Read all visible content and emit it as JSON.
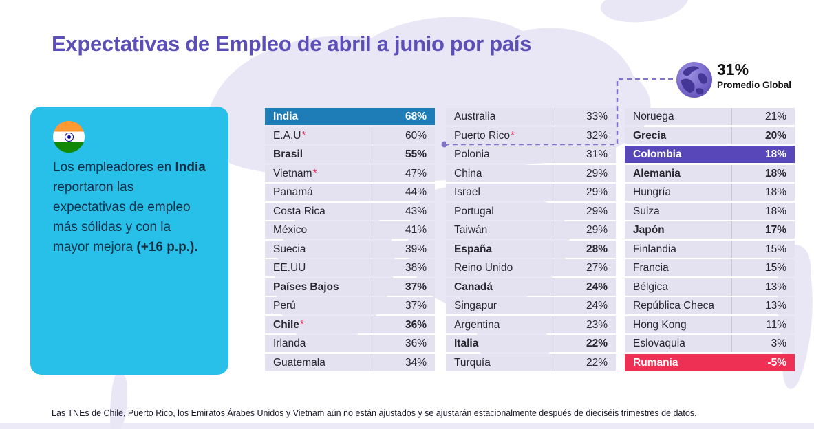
{
  "title": "Expectativas de Empleo de abril a junio por país",
  "global_average": {
    "display": "31%",
    "value": 31,
    "label": "Promedio Global"
  },
  "callout": {
    "text_1": "Los empleadores en ",
    "bold_1": "India",
    "text_2": " reportaron las expectativas de empleo más sólidas y con la mayor mejora ",
    "bold_2": "(+16 p.p.)."
  },
  "footnote": "Las TNEs de Chile, Puerto Rico, los Emiratos Árabes Unidos y Vietnam aún no están ajustados y se ajustarán estacionalmente después de dieciséis trimestres de datos.",
  "icons": {
    "globe": "globe-icon",
    "india_flag": "india-flag-icon"
  },
  "colors": {
    "title_text": "#5B4EB6",
    "row_bg": "#E4E1F1",
    "row_divider": "#C9C3DF",
    "row_text": "#26262E",
    "india_row": "#1E7DB7",
    "colombia_row": "#5847B8",
    "rumania_row": "#ED3054",
    "asterisk": "#E8325A",
    "callout_bg": "#28BFE8",
    "callout_text": "#0D2F45",
    "connector": "#8172CE",
    "watermark": "#E9E6F5"
  },
  "chart_data": {
    "type": "table",
    "title": "Expectativas de Empleo de abril a junio por país",
    "unit": "%",
    "asterisk_symbol": "*",
    "global_average": 31,
    "columns": [
      {
        "rows": [
          {
            "country": "India",
            "value": 68,
            "display": "68%",
            "highlight": "india"
          },
          {
            "country": "E.A.U",
            "value": 60,
            "display": "60%",
            "asterisk": true
          },
          {
            "country": "Brasil",
            "value": 55,
            "display": "55%",
            "bold": true
          },
          {
            "country": "Vietnam",
            "value": 47,
            "display": "47%",
            "asterisk": true
          },
          {
            "country": "Panamá",
            "value": 44,
            "display": "44%"
          },
          {
            "country": "Costa Rica",
            "value": 43,
            "display": "43%"
          },
          {
            "country": "México",
            "value": 41,
            "display": "41%"
          },
          {
            "country": "Suecia",
            "value": 39,
            "display": "39%"
          },
          {
            "country": "EE.UU",
            "value": 38,
            "display": "38%"
          },
          {
            "country": "Países Bajos",
            "value": 37,
            "display": "37%",
            "bold": true
          },
          {
            "country": "Perú",
            "value": 37,
            "display": "37%"
          },
          {
            "country": "Chile",
            "value": 36,
            "display": "36%",
            "asterisk": true,
            "bold": true
          },
          {
            "country": "Irlanda",
            "value": 36,
            "display": "36%"
          },
          {
            "country": "Guatemala",
            "value": 34,
            "display": "34%"
          }
        ]
      },
      {
        "rows": [
          {
            "country": "Australia",
            "value": 33,
            "display": "33%"
          },
          {
            "country": "Puerto Rico",
            "value": 32,
            "display": "32%",
            "asterisk": true
          },
          {
            "country": "Polonia",
            "value": 31,
            "display": "31%"
          },
          {
            "country": "China",
            "value": 29,
            "display": "29%"
          },
          {
            "country": "Israel",
            "value": 29,
            "display": "29%"
          },
          {
            "country": "Portugal",
            "value": 29,
            "display": "29%"
          },
          {
            "country": "Taiwán",
            "value": 29,
            "display": "29%"
          },
          {
            "country": "España",
            "value": 28,
            "display": "28%",
            "bold": true
          },
          {
            "country": "Reino Unido",
            "value": 27,
            "display": "27%"
          },
          {
            "country": "Canadá",
            "value": 24,
            "display": "24%",
            "bold": true
          },
          {
            "country": "Singapur",
            "value": 24,
            "display": "24%"
          },
          {
            "country": "Argentina",
            "value": 23,
            "display": "23%"
          },
          {
            "country": "Italia",
            "value": 22,
            "display": "22%",
            "bold": true
          },
          {
            "country": "Turquía",
            "value": 22,
            "display": "22%"
          }
        ]
      },
      {
        "rows": [
          {
            "country": "Noruega",
            "value": 21,
            "display": "21%"
          },
          {
            "country": "Grecia",
            "value": 20,
            "display": "20%",
            "bold": true
          },
          {
            "country": "Colombia",
            "value": 18,
            "display": "18%",
            "highlight": "colombia"
          },
          {
            "country": "Alemania",
            "value": 18,
            "display": "18%",
            "bold": true
          },
          {
            "country": "Hungría",
            "value": 18,
            "display": "18%"
          },
          {
            "country": "Suiza",
            "value": 18,
            "display": "18%"
          },
          {
            "country": "Japón",
            "value": 17,
            "display": "17%",
            "bold": true
          },
          {
            "country": "Finlandia",
            "value": 15,
            "display": "15%"
          },
          {
            "country": "Francia",
            "value": 15,
            "display": "15%"
          },
          {
            "country": "Bélgica",
            "value": 13,
            "display": "13%"
          },
          {
            "country": "República Checa",
            "value": 13,
            "display": "13%"
          },
          {
            "country": "Hong Kong",
            "value": 11,
            "display": "11%"
          },
          {
            "country": "Eslovaquia",
            "value": 3,
            "display": "3%"
          },
          {
            "country": "Rumania",
            "value": -5,
            "display": "-5%",
            "highlight": "rumania"
          }
        ]
      }
    ]
  }
}
